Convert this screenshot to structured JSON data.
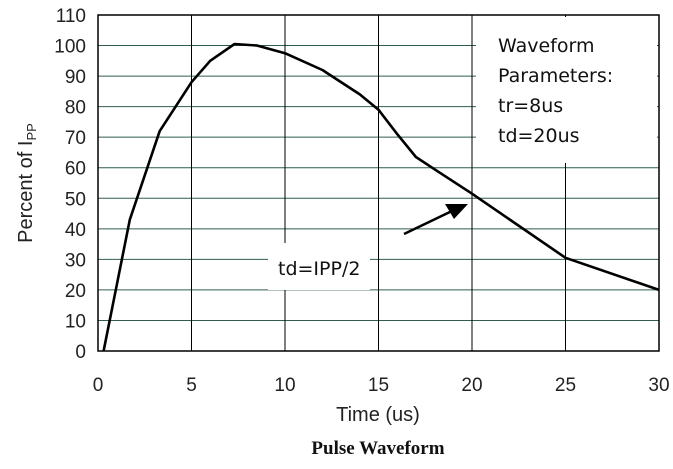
{
  "chart_data": {
    "type": "line",
    "title": "Pulse Waveform",
    "xlabel": "Time (us)",
    "ylabel": {
      "main": "Percent of I",
      "sub": "PP"
    },
    "xlim": [
      0,
      30
    ],
    "ylim": [
      0,
      110
    ],
    "x_ticks": [
      "0",
      "5",
      "10",
      "15",
      "20",
      "25",
      "30"
    ],
    "y_ticks": [
      "0",
      "10",
      "20",
      "30",
      "40",
      "50",
      "60",
      "70",
      "80",
      "90",
      "100",
      "110"
    ],
    "grid": true,
    "series": [
      {
        "points": [
          [
            0.3,
            0
          ],
          [
            1.7,
            43
          ],
          [
            3.3,
            72
          ],
          [
            5,
            88
          ],
          [
            6,
            95
          ],
          [
            7.3,
            100.5
          ],
          [
            8.5,
            100
          ],
          [
            10,
            97.5
          ],
          [
            12,
            92
          ],
          [
            14,
            84
          ],
          [
            15,
            79
          ],
          [
            16,
            71
          ],
          [
            17,
            63.5
          ],
          [
            18,
            59.5
          ],
          [
            20,
            51.5
          ],
          [
            25,
            30.5
          ],
          [
            30,
            20
          ]
        ]
      }
    ],
    "annotations": {
      "parameters": [
        "Waveform",
        "Parameters:",
        "tr=8us",
        "td=20us"
      ],
      "td_label": "td=IPP/2"
    }
  }
}
